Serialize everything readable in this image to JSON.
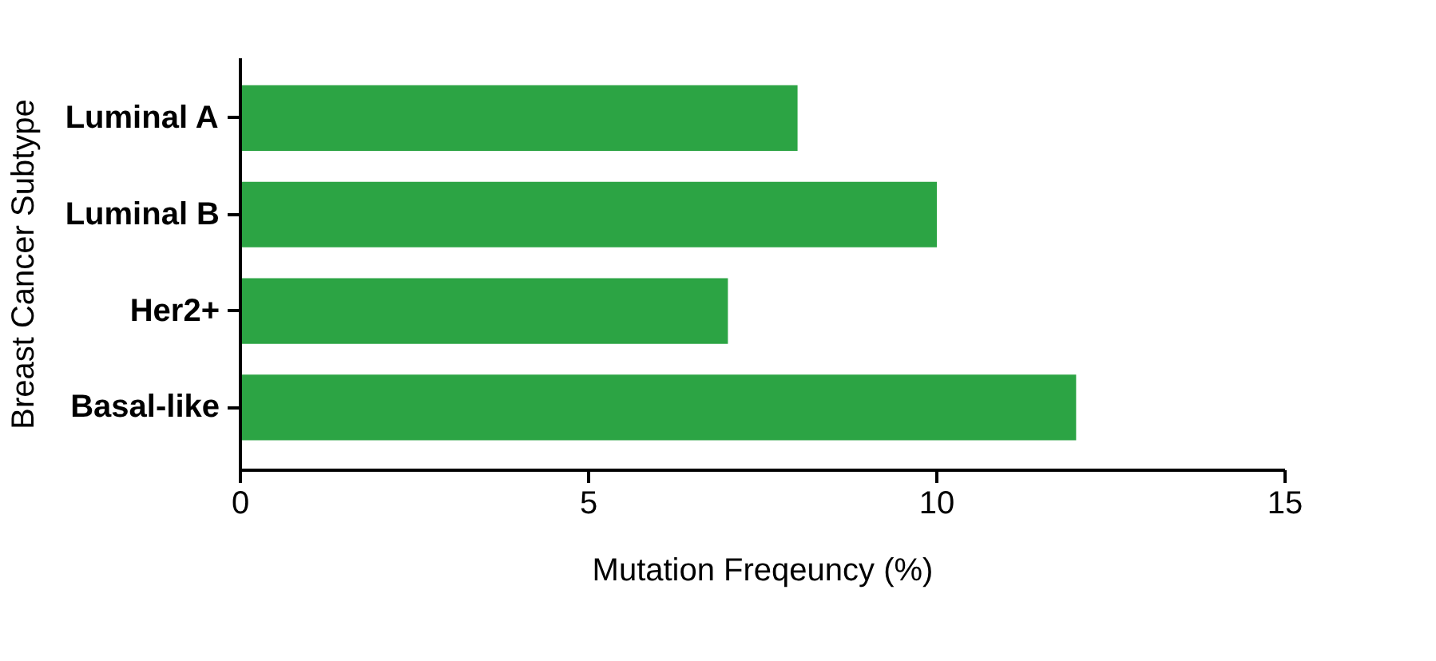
{
  "chart_data": {
    "type": "bar",
    "orientation": "horizontal",
    "xlabel": "Mutation Freqeuncy (%)",
    "ylabel": "Breast Cancer Subtype",
    "categories": [
      "Luminal A",
      "Luminal B",
      "Her2+",
      "Basal-like"
    ],
    "values": [
      8,
      10,
      7,
      12
    ],
    "color": "#2ca444",
    "xlim": [
      0,
      15
    ],
    "xticks": [
      0,
      5,
      10,
      15
    ],
    "grid": false
  }
}
